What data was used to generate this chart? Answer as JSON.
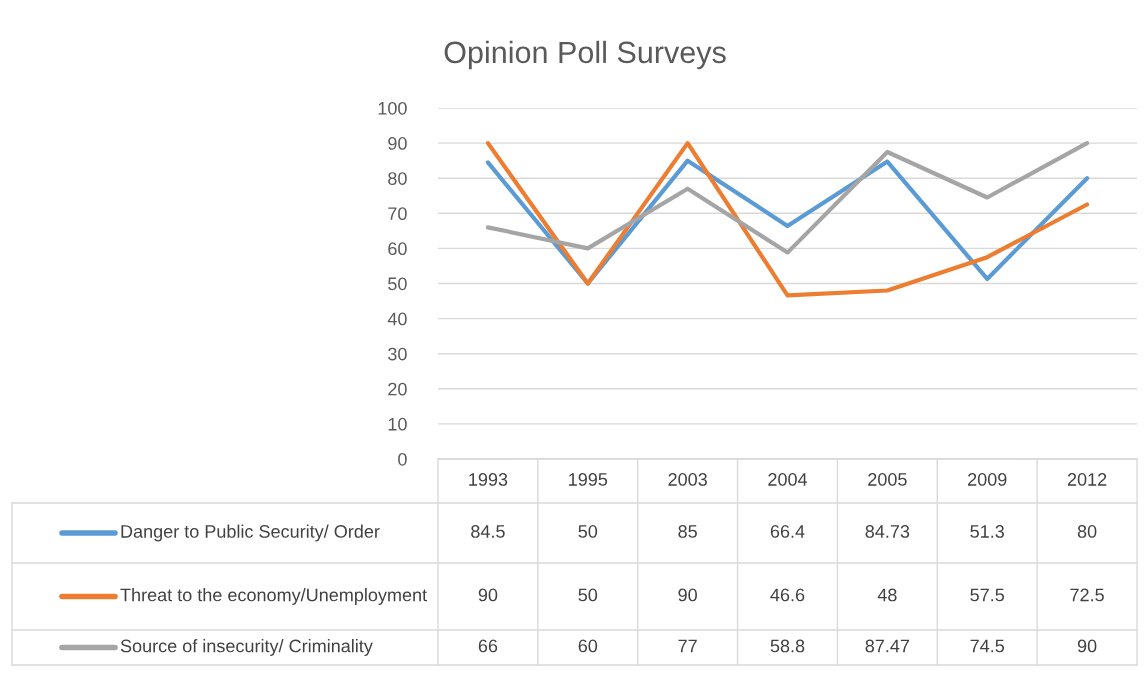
{
  "chart_data": {
    "type": "line",
    "title": "Opinion Poll Surveys",
    "categories": [
      "1993",
      "1995",
      "2003",
      "2004",
      "2005",
      "2009",
      "2012"
    ],
    "series": [
      {
        "name": "Danger to Public Security/ Order",
        "color": "#5b9bd5",
        "values": [
          84.5,
          50,
          85,
          66.4,
          84.73,
          51.3,
          80
        ]
      },
      {
        "name": "Threat to the economy/Unemployment",
        "color": "#ed7d31",
        "values": [
          90,
          50,
          90,
          46.6,
          48,
          57.5,
          72.5
        ]
      },
      {
        "name": "Source of insecurity/ Criminality",
        "color": "#a5a5a5",
        "values": [
          66,
          60,
          77,
          58.8,
          87.47,
          74.5,
          90
        ]
      }
    ],
    "ylim": [
      0,
      100
    ],
    "yticks": [
      0,
      10,
      20,
      30,
      40,
      50,
      60,
      70,
      80,
      90,
      100
    ],
    "grid": "y",
    "legend": "bottom",
    "data_labels": true,
    "marker": "none",
    "line_style": "solid"
  }
}
